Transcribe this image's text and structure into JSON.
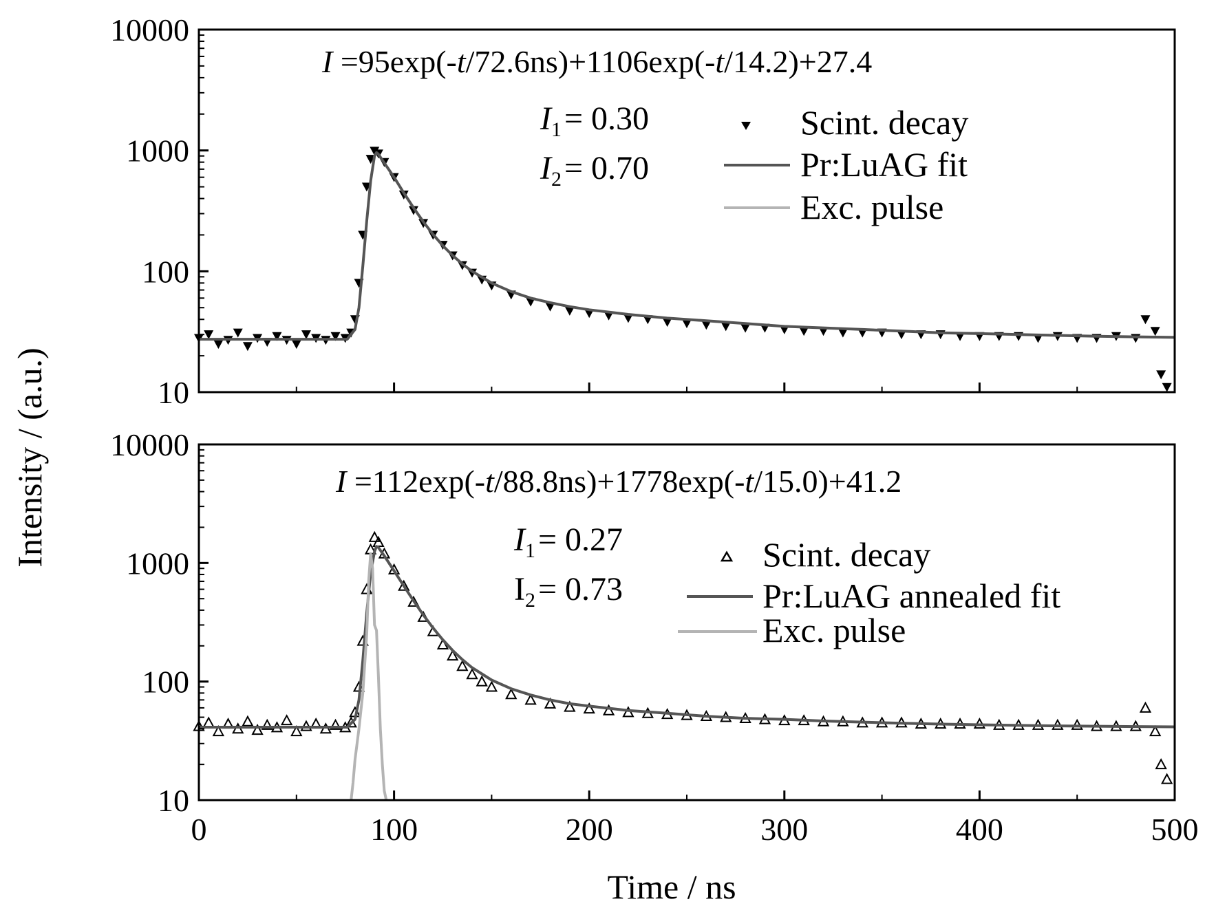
{
  "figure": {
    "ylabel": "Intensity / (a.u.)",
    "xlabel": "Time / ns",
    "x_ticks": [
      "0",
      "100",
      "200",
      "300",
      "400",
      "500"
    ],
    "y_ticks": [
      "10",
      "100",
      "1000",
      "10000"
    ]
  },
  "colors": {
    "data_marker": "#000000",
    "fit_line": "#555555",
    "exc_pulse": "#b4b4b4",
    "axes": "#000000"
  },
  "top": {
    "equation": {
      "prefix": "I",
      "rest": " =95exp(-",
      "t1": "t",
      "mid": "/72.6ns)+1106exp(-",
      "t2": "t",
      "tail": "/14.2)+27.4"
    },
    "fractions": [
      {
        "symbol": "I",
        "sub": "1",
        "text": "= 0.30"
      },
      {
        "symbol": "I",
        "sub": "2",
        "text": "= 0.70"
      }
    ],
    "legend": [
      "Scint. decay",
      "Pr:LuAG fit",
      "Exc. pulse"
    ]
  },
  "bottom": {
    "equation": {
      "prefix": "I",
      "rest": " =112exp(-",
      "t1": "t",
      "mid": "/88.8ns)+1778exp(-",
      "t2": "t",
      "tail": "/15.0)+41.2"
    },
    "fractions": [
      {
        "symbol": "I",
        "sub": "1",
        "text": "= 0.27"
      },
      {
        "symbol": "I",
        "sub": "2",
        "text": "= 0.73"
      }
    ],
    "legend": [
      "Scint. decay",
      "Pr:LuAG annealed fit",
      "Exc. pulse"
    ]
  },
  "chart_data": [
    {
      "type": "scatter",
      "panel": "top",
      "xlabel": "Time / ns",
      "ylabel": "Intensity / (a.u.)",
      "xlim": [
        0,
        500
      ],
      "ylim": [
        10,
        10000
      ],
      "yscale": "log",
      "legend_position": "top-right",
      "marker": "down-triangle",
      "series": [
        {
          "name": "Scint. decay",
          "kind": "scatter",
          "points": [
            [
              0,
              28
            ],
            [
              5,
              30
            ],
            [
              10,
              25
            ],
            [
              15,
              27
            ],
            [
              20,
              31
            ],
            [
              25,
              24
            ],
            [
              30,
              28
            ],
            [
              35,
              26
            ],
            [
              40,
              29
            ],
            [
              45,
              27
            ],
            [
              50,
              25
            ],
            [
              55,
              30
            ],
            [
              60,
              28
            ],
            [
              65,
              27
            ],
            [
              70,
              29
            ],
            [
              75,
              28
            ],
            [
              78,
              31
            ],
            [
              80,
              40
            ],
            [
              82,
              80
            ],
            [
              84,
              200
            ],
            [
              86,
              500
            ],
            [
              88,
              850
            ],
            [
              90,
              990
            ],
            [
              92,
              940
            ],
            [
              95,
              800
            ],
            [
              100,
              600
            ],
            [
              105,
              430
            ],
            [
              110,
              320
            ],
            [
              115,
              250
            ],
            [
              120,
              200
            ],
            [
              125,
              165
            ],
            [
              130,
              135
            ],
            [
              135,
              112
            ],
            [
              140,
              97
            ],
            [
              145,
              85
            ],
            [
              150,
              76
            ],
            [
              160,
              64
            ],
            [
              170,
              56
            ],
            [
              180,
              51
            ],
            [
              190,
              47
            ],
            [
              200,
              45
            ],
            [
              210,
              43
            ],
            [
              220,
              41
            ],
            [
              230,
              40
            ],
            [
              240,
              38
            ],
            [
              250,
              37
            ],
            [
              260,
              36
            ],
            [
              270,
              35
            ],
            [
              280,
              34
            ],
            [
              290,
              34
            ],
            [
              300,
              33
            ],
            [
              310,
              32
            ],
            [
              320,
              32
            ],
            [
              330,
              31
            ],
            [
              340,
              31
            ],
            [
              350,
              31
            ],
            [
              360,
              30
            ],
            [
              370,
              30
            ],
            [
              380,
              30
            ],
            [
              390,
              29
            ],
            [
              400,
              29
            ],
            [
              410,
              29
            ],
            [
              420,
              29
            ],
            [
              430,
              28
            ],
            [
              440,
              29
            ],
            [
              450,
              28
            ],
            [
              460,
              28
            ],
            [
              470,
              29
            ],
            [
              480,
              28
            ],
            [
              485,
              40
            ],
            [
              490,
              32
            ],
            [
              493,
              14
            ],
            [
              496,
              11
            ]
          ]
        },
        {
          "name": "Pr:LuAG fit",
          "kind": "line",
          "points": [
            [
              0,
              27.4
            ],
            [
              76,
              27.4
            ],
            [
              80,
              33
            ],
            [
              82,
              50
            ],
            [
              84,
              110
            ],
            [
              86,
              260
            ],
            [
              88,
              560
            ],
            [
              90,
              900
            ],
            [
              91,
              960
            ],
            [
              92,
              930
            ],
            [
              95,
              790
            ],
            [
              100,
              600
            ],
            [
              105,
              445
            ],
            [
              110,
              335
            ],
            [
              115,
              257
            ],
            [
              120,
              202
            ],
            [
              125,
              163
            ],
            [
              130,
              135
            ],
            [
              135,
              115
            ],
            [
              140,
              100
            ],
            [
              150,
              80
            ],
            [
              160,
              68
            ],
            [
              170,
              60
            ],
            [
              180,
              55
            ],
            [
              190,
              51
            ],
            [
              200,
              48
            ],
            [
              220,
              44
            ],
            [
              240,
              41
            ],
            [
              260,
              39
            ],
            [
              280,
              37
            ],
            [
              300,
              35
            ],
            [
              320,
              34
            ],
            [
              340,
              33
            ],
            [
              360,
              32
            ],
            [
              380,
              31
            ],
            [
              400,
              30.5
            ],
            [
              420,
              30
            ],
            [
              440,
              29.5
            ],
            [
              460,
              29
            ],
            [
              480,
              28.7
            ],
            [
              500,
              28.4
            ]
          ]
        }
      ]
    },
    {
      "type": "scatter",
      "panel": "bottom",
      "xlabel": "Time / ns",
      "ylabel": "Intensity / (a.u.)",
      "xlim": [
        0,
        500
      ],
      "ylim": [
        10,
        10000
      ],
      "yscale": "log",
      "legend_position": "top-right",
      "marker": "up-triangle-open",
      "series": [
        {
          "name": "Scint. decay",
          "kind": "scatter",
          "points": [
            [
              0,
              42
            ],
            [
              5,
              45
            ],
            [
              10,
              38
            ],
            [
              15,
              44
            ],
            [
              20,
              40
            ],
            [
              25,
              46
            ],
            [
              30,
              39
            ],
            [
              35,
              43
            ],
            [
              40,
              41
            ],
            [
              45,
              47
            ],
            [
              50,
              38
            ],
            [
              55,
              42
            ],
            [
              60,
              44
            ],
            [
              65,
              40
            ],
            [
              70,
              43
            ],
            [
              75,
              41
            ],
            [
              78,
              45
            ],
            [
              80,
              55
            ],
            [
              82,
              90
            ],
            [
              84,
              220
            ],
            [
              86,
              600
            ],
            [
              88,
              1300
            ],
            [
              90,
              1650
            ],
            [
              92,
              1500
            ],
            [
              95,
              1200
            ],
            [
              100,
              880
            ],
            [
              105,
              640
            ],
            [
              110,
              470
            ],
            [
              115,
              350
            ],
            [
              120,
              265
            ],
            [
              125,
              205
            ],
            [
              130,
              165
            ],
            [
              135,
              135
            ],
            [
              140,
              115
            ],
            [
              145,
              100
            ],
            [
              150,
              90
            ],
            [
              160,
              78
            ],
            [
              170,
              70
            ],
            [
              180,
              65
            ],
            [
              190,
              61
            ],
            [
              200,
              59
            ],
            [
              210,
              57
            ],
            [
              220,
              55
            ],
            [
              230,
              54
            ],
            [
              240,
              53
            ],
            [
              250,
              52
            ],
            [
              260,
              51
            ],
            [
              270,
              50
            ],
            [
              280,
              49
            ],
            [
              290,
              48
            ],
            [
              300,
              47
            ],
            [
              310,
              47
            ],
            [
              320,
              46
            ],
            [
              330,
              46
            ],
            [
              340,
              45
            ],
            [
              350,
              45
            ],
            [
              360,
              45
            ],
            [
              370,
              44
            ],
            [
              380,
              44
            ],
            [
              390,
              44
            ],
            [
              400,
              44
            ],
            [
              410,
              43
            ],
            [
              420,
              43
            ],
            [
              430,
              43
            ],
            [
              440,
              43
            ],
            [
              450,
              43
            ],
            [
              460,
              42
            ],
            [
              470,
              42
            ],
            [
              480,
              42
            ],
            [
              485,
              60
            ],
            [
              490,
              38
            ],
            [
              493,
              20
            ],
            [
              496,
              15
            ]
          ]
        },
        {
          "name": "Pr:LuAG annealed fit",
          "kind": "line",
          "points": [
            [
              0,
              41.2
            ],
            [
              76,
              41.2
            ],
            [
              80,
              48
            ],
            [
              82,
              70
            ],
            [
              84,
              150
            ],
            [
              86,
              380
            ],
            [
              88,
              820
            ],
            [
              90,
              1250
            ],
            [
              91,
              1380
            ],
            [
              92,
              1350
            ],
            [
              95,
              1150
            ],
            [
              100,
              860
            ],
            [
              105,
              640
            ],
            [
              110,
              480
            ],
            [
              115,
              365
            ],
            [
              120,
              283
            ],
            [
              125,
              225
            ],
            [
              130,
              183
            ],
            [
              135,
              153
            ],
            [
              140,
              131
            ],
            [
              150,
              103
            ],
            [
              160,
              87
            ],
            [
              170,
              77
            ],
            [
              180,
              70
            ],
            [
              190,
              65
            ],
            [
              200,
              62
            ],
            [
              220,
              57
            ],
            [
              240,
              54
            ],
            [
              260,
              51
            ],
            [
              280,
              49
            ],
            [
              300,
              48
            ],
            [
              320,
              46.5
            ],
            [
              340,
              45.5
            ],
            [
              360,
              44.5
            ],
            [
              380,
              43.8
            ],
            [
              400,
              43.2
            ],
            [
              420,
              42.7
            ],
            [
              440,
              42.3
            ],
            [
              460,
              42
            ],
            [
              480,
              41.7
            ],
            [
              500,
              41.5
            ]
          ]
        },
        {
          "name": "Exc. pulse",
          "kind": "line",
          "points": [
            [
              78,
              10
            ],
            [
              79,
              14
            ],
            [
              80,
              22
            ],
            [
              82,
              40
            ],
            [
              84,
              80
            ],
            [
              86,
              250
            ],
            [
              87,
              700
            ],
            [
              88,
              1200
            ],
            [
              89,
              900
            ],
            [
              90,
              300
            ],
            [
              91,
              270
            ],
            [
              92,
              110
            ],
            [
              93,
              40
            ],
            [
              94,
              20
            ],
            [
              95,
              12
            ],
            [
              96,
              10
            ]
          ]
        }
      ]
    }
  ]
}
